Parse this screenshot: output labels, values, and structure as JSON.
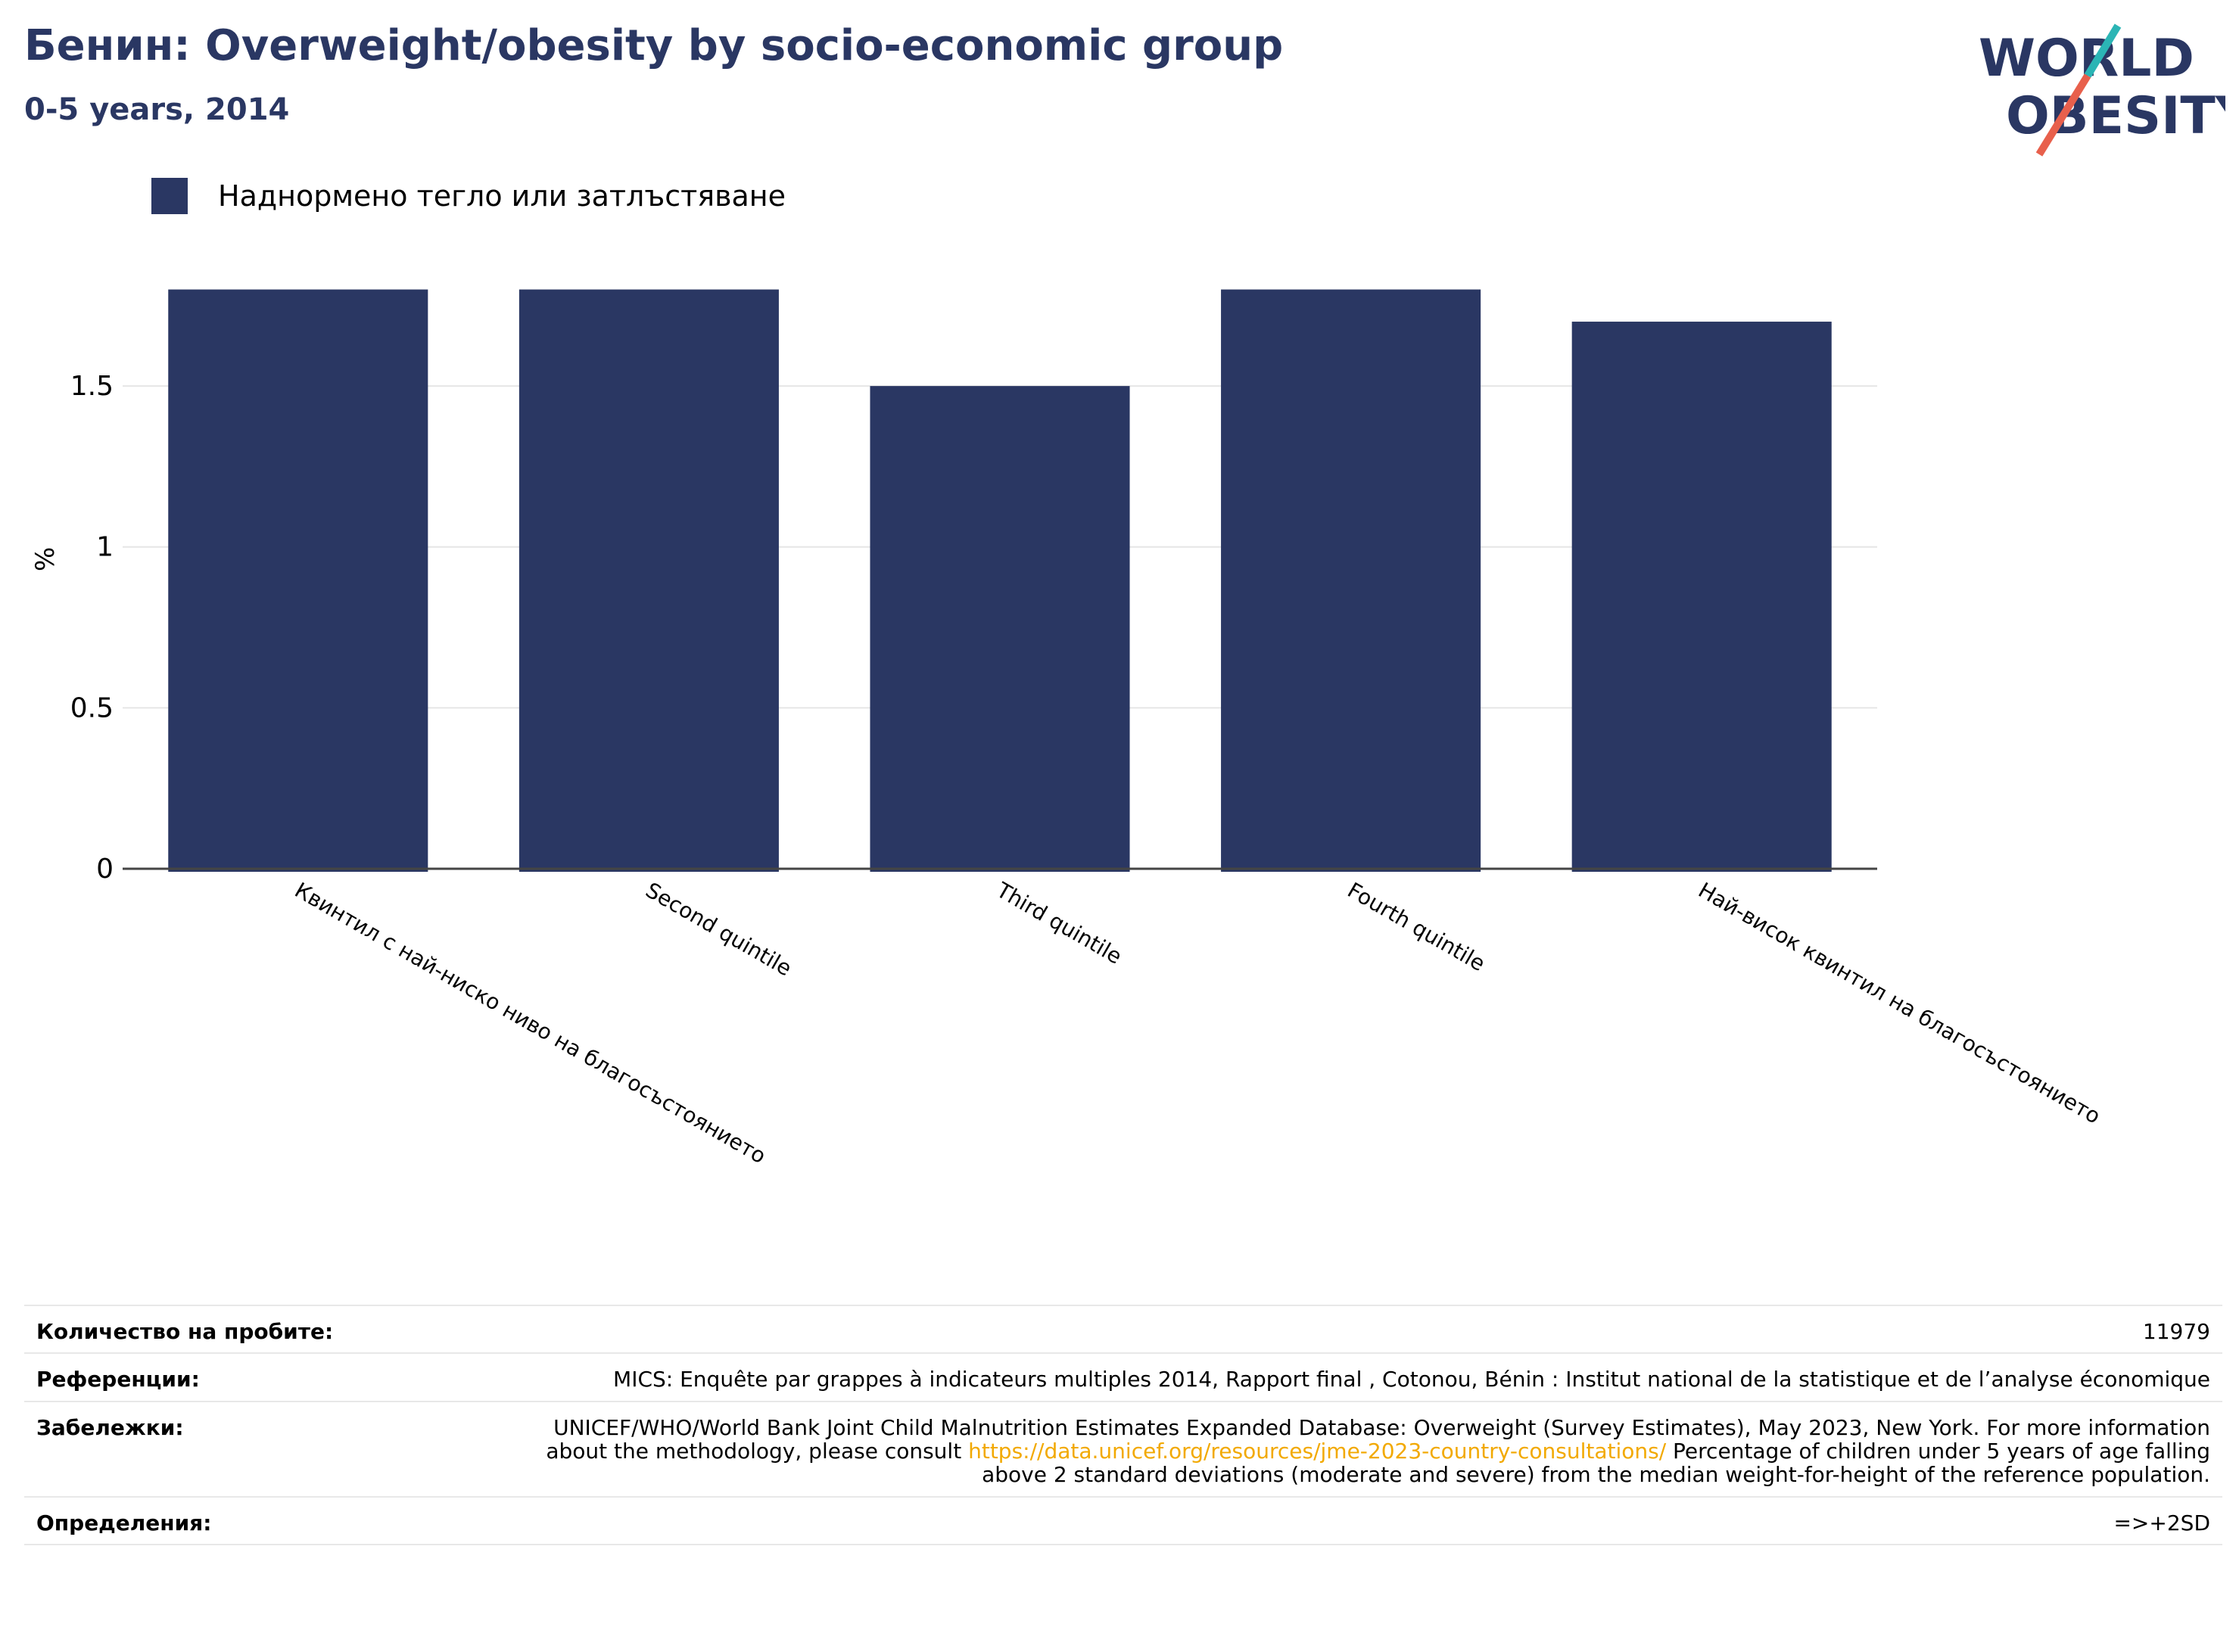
{
  "header": {
    "title": "Бенин: Overweight/obesity by socio-economic group",
    "subtitle": "0-5 years, 2014",
    "logo_line1": "WORLD",
    "logo_line2": "OBESITY"
  },
  "colors": {
    "bar": "#2a3763",
    "title": "#2a3763",
    "link": "#f2a900",
    "logo_teal": "#2bb5b5",
    "logo_red": "#e8604c",
    "grid": "#e6e6e6"
  },
  "legend": {
    "label": "Наднормено тегло или затлъстяване"
  },
  "chart_data": {
    "type": "bar",
    "categories": [
      "Квинтил с най-ниско ниво на благосъстоянието",
      "Second quintile",
      "Third quintile",
      "Fourth quintile",
      "Най-висок квинтил на благосъстоянието"
    ],
    "series": [
      {
        "name": "Наднормено тегло или затлъстяване",
        "values": [
          1.8,
          1.8,
          1.5,
          1.8,
          1.7
        ]
      }
    ],
    "ylabel": "%",
    "xlabel": "",
    "ylim": [
      0,
      1.9
    ],
    "yticks": [
      0,
      0.5,
      1,
      1.5
    ],
    "ytick_labels": [
      "0",
      "0.5",
      "1",
      "1.5"
    ],
    "grid": true,
    "legend_position": "top-left"
  },
  "info": {
    "sample_label": "Количество на пробите:",
    "sample_value": "11979",
    "refs_label": "Референции:",
    "refs_value": "MICS: Enquête par grappes à indicateurs multiples 2014, Rapport final , Cotonou, Bénin : Institut national de la statistique et de l’analyse économique",
    "notes_label": "Забележки:",
    "notes_before": "UNICEF/WHO/World Bank Joint Child Malnutrition Estimates Expanded Database: Overweight (Survey Estimates), May 2023, New York. For more information about the methodology, please consult",
    "notes_link": "https://data.unicef.org/resources/jme-2023-country-consultations/",
    "notes_after": "Percentage of children under 5 years of age falling above 2 standard deviations (moderate and severe) from the median weight-for-height of the reference population.",
    "defs_label": "Определения:",
    "defs_value": "=>+2SD"
  }
}
